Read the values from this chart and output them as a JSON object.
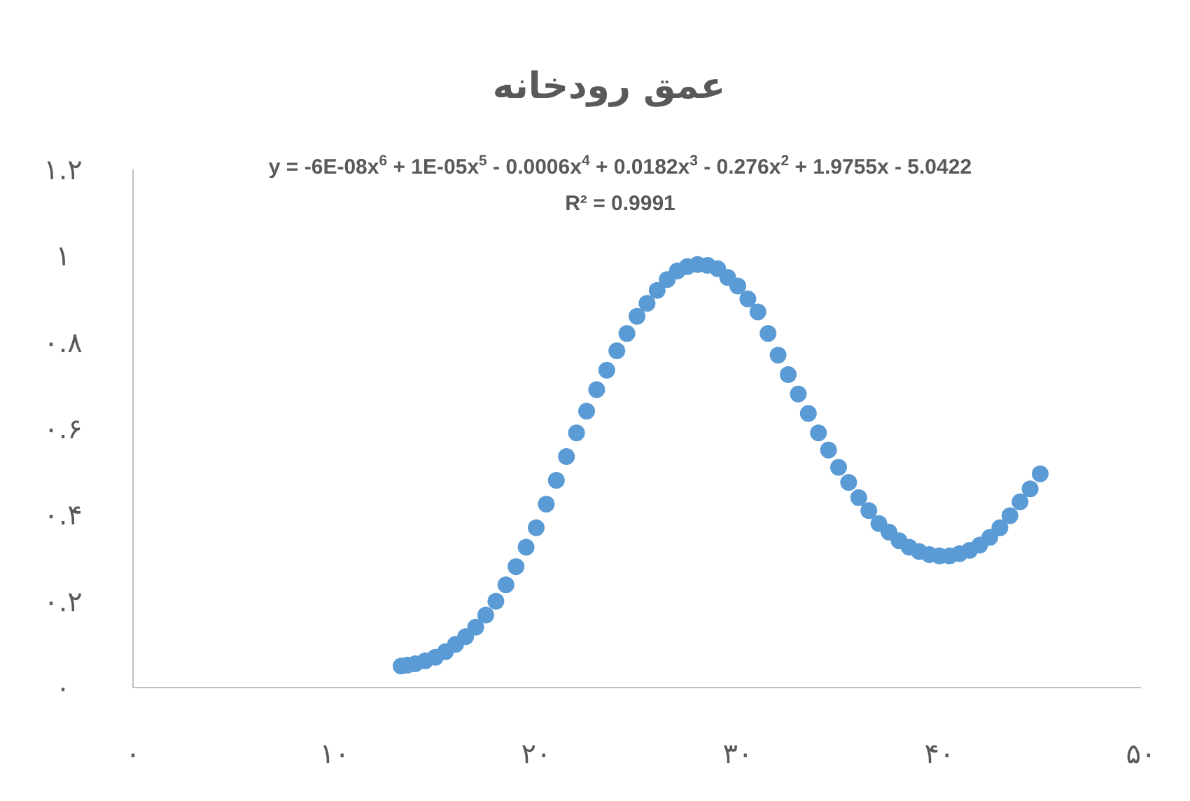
{
  "chart_data": {
    "type": "scatter",
    "title": "عمق رودخانه",
    "annotations": [
      "y = -6E-08x$^{6}$ + 1E-05x$^{5}$ - 0.0006x$^{4}$ + 0.0182x$^{3}$ - 0.276x$^{2}$ + 1.9755x - 5.0422",
      "R² = 0.9991"
    ],
    "x": [
      13.3,
      13.6,
      14,
      14.5,
      15,
      15.5,
      16,
      16.5,
      17,
      17.5,
      18,
      18.5,
      19,
      19.5,
      20,
      20.5,
      21,
      21.5,
      22,
      22.5,
      23,
      23.5,
      24,
      24.5,
      25,
      25.5,
      26,
      26.5,
      27,
      27.5,
      28,
      28.5,
      29,
      29.5,
      30,
      30.5,
      31,
      31.5,
      32,
      32.5,
      33,
      33.5,
      34,
      34.5,
      35,
      35.5,
      36,
      36.5,
      37,
      37.5,
      38,
      38.5,
      39,
      39.5,
      40,
      40.5,
      41,
      41.5,
      42,
      42.5,
      43,
      43.5,
      44,
      44.5,
      45
    ],
    "series": [
      {
        "color": "#5b9bd5",
        "values": [
          0.05,
          0.052,
          0.055,
          0.062,
          0.07,
          0.083,
          0.1,
          0.118,
          0.14,
          0.168,
          0.2,
          0.238,
          0.28,
          0.325,
          0.37,
          0.425,
          0.48,
          0.535,
          0.59,
          0.64,
          0.69,
          0.735,
          0.78,
          0.82,
          0.86,
          0.89,
          0.92,
          0.945,
          0.965,
          0.975,
          0.98,
          0.978,
          0.97,
          0.95,
          0.93,
          0.9,
          0.87,
          0.82,
          0.77,
          0.725,
          0.68,
          0.635,
          0.59,
          0.55,
          0.51,
          0.475,
          0.44,
          0.41,
          0.38,
          0.36,
          0.34,
          0.325,
          0.315,
          0.308,
          0.305,
          0.305,
          0.31,
          0.318,
          0.33,
          0.348,
          0.37,
          0.398,
          0.43,
          0.46,
          0.495
        ]
      }
    ],
    "marker": "circle",
    "grid": false,
    "xlim": [
      0,
      50
    ],
    "xticks": [
      {
        "value": 0,
        "label": "۰"
      },
      {
        "value": 10,
        "label": "۱۰"
      },
      {
        "value": 20,
        "label": "۲۰"
      },
      {
        "value": 30,
        "label": "۳۰"
      },
      {
        "value": 40,
        "label": "۴۰"
      },
      {
        "value": 50,
        "label": "۵۰"
      }
    ],
    "ylim": [
      0,
      1.2
    ],
    "yticks": [
      {
        "value": 0,
        "label": "۰"
      },
      {
        "value": 0.2,
        "label": "۰.۲"
      },
      {
        "value": 0.4,
        "label": "۰.۴"
      },
      {
        "value": 0.6,
        "label": "۰.۶"
      },
      {
        "value": 0.8,
        "label": "۰.۸"
      },
      {
        "value": 1,
        "label": "۱"
      },
      {
        "value": 1.2,
        "label": "۱.۲"
      }
    ]
  }
}
